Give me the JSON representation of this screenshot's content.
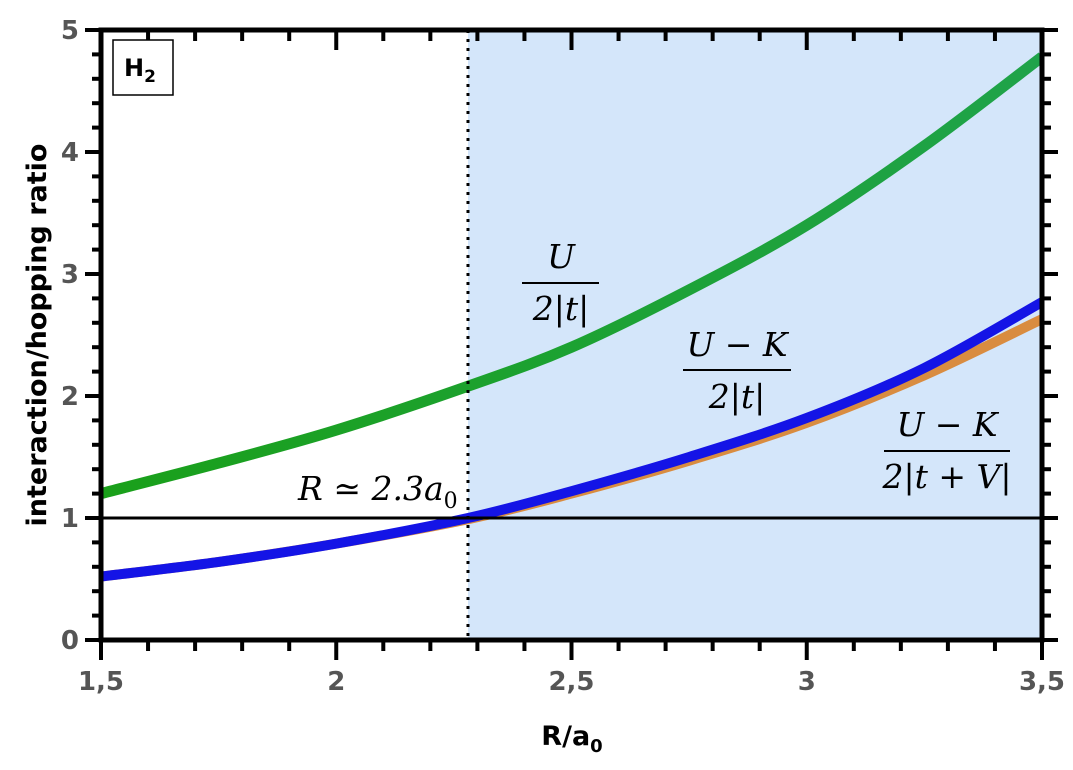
{
  "chart_data": {
    "type": "line",
    "xlabel": "R/a",
    "xlabel_sub": "0",
    "ylabel": "interaction/hopping ratio",
    "xlim": [
      1.5,
      3.5
    ],
    "ylim": [
      0,
      5
    ],
    "xticks": [
      "1,5",
      "2",
      "2,5",
      "3",
      "3,5"
    ],
    "xtick_values": [
      1.5,
      2,
      2.5,
      3,
      3.5
    ],
    "yticks": [
      "0",
      "1",
      "2",
      "3",
      "4",
      "5"
    ],
    "ytick_values": [
      0,
      1,
      2,
      3,
      4,
      5
    ],
    "grid": false,
    "panel_label": "H",
    "panel_label_sub": "2",
    "threshold": {
      "x": 2.28,
      "y": 1,
      "label": "R ≃ 2.3a",
      "label_sub": "0"
    },
    "shaded_region": {
      "x_from": 2.28,
      "x_to": 3.5,
      "color": "#d4e6fa"
    },
    "series": [
      {
        "label_num": "U",
        "label_den": "2|t|",
        "color_left": "#1aa01a",
        "color_right": "#1fa34a",
        "x": [
          1.5,
          1.75,
          2.0,
          2.28,
          2.5,
          2.75,
          3.0,
          3.25,
          3.5
        ],
        "y": [
          1.2,
          1.45,
          1.72,
          2.08,
          2.4,
          2.87,
          3.4,
          4.05,
          4.78
        ]
      },
      {
        "label_num": "U − K",
        "label_den": "2|t + V|",
        "color": "#d98c40",
        "x": [
          1.5,
          1.75,
          2.0,
          2.28,
          2.5,
          2.75,
          3.0,
          3.25,
          3.5
        ],
        "y": [
          0.52,
          0.64,
          0.79,
          0.99,
          1.2,
          1.47,
          1.78,
          2.17,
          2.63
        ]
      },
      {
        "label_num": "U − K",
        "label_den": "2|t|",
        "color": "#1414e6",
        "x": [
          1.5,
          1.75,
          2.0,
          2.28,
          2.5,
          2.75,
          3.0,
          3.25,
          3.5
        ],
        "y": [
          0.52,
          0.64,
          0.79,
          1.0,
          1.22,
          1.5,
          1.82,
          2.23,
          2.77
        ]
      }
    ]
  }
}
